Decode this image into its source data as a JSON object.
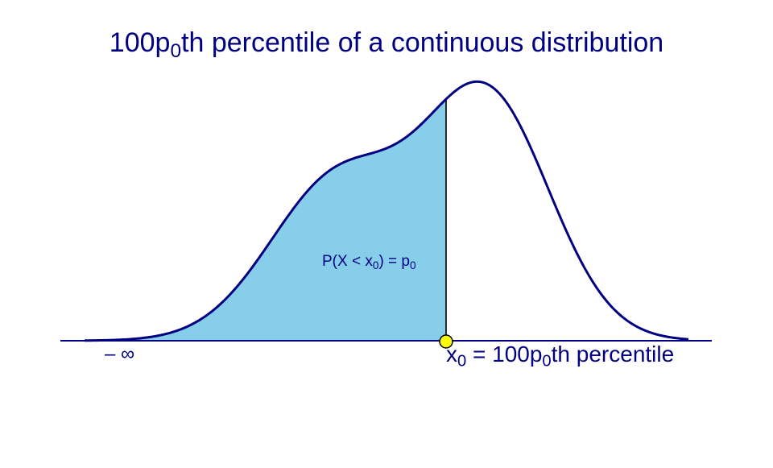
{
  "title": {
    "pre": "100p",
    "sub": "0",
    "post": "th percentile of a continuous distribution"
  },
  "area_label": {
    "a": "P(X < x",
    "a_sub": "0",
    "b": ") = p",
    "b_sub": "0"
  },
  "lower_limit_label": "– ∞",
  "x0_label": {
    "a": "x",
    "a_sub": "0",
    "b": " = 100p",
    "b_sub": "0",
    "c": "th  percentile"
  },
  "colors": {
    "curve": "#000080",
    "shaded_area": "#87ceeb",
    "axis": "#000080",
    "x0_marker": "#ffff00",
    "text": "#000080"
  }
}
